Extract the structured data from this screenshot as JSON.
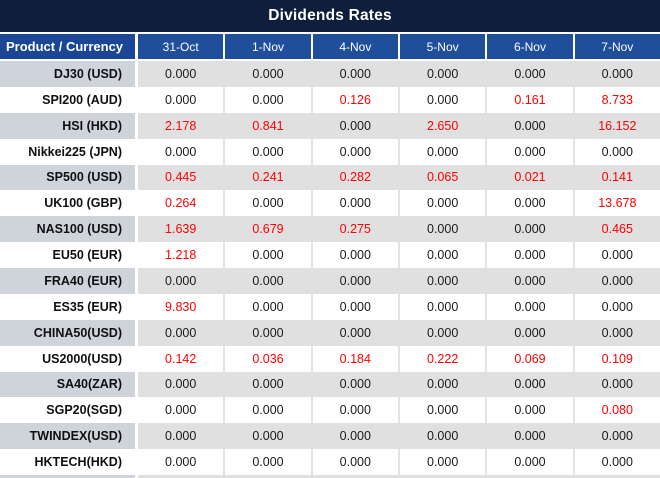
{
  "colors": {
    "title_bg": "#0E1E3C",
    "header_product_bg": "#1B4695",
    "header_date_bg": "#1F4E9B",
    "header_text": "#FFFFFF",
    "stripe_product_bg": "#CFD3DA",
    "stripe_data_bg": "#E0E0E0",
    "value_text": "#1A1A1A",
    "nonzero_value_text": "#FF0000"
  },
  "chart_data": {
    "type": "table",
    "title": "Dividends Rates",
    "header": {
      "product_label": "Product / Currency",
      "dates": [
        "31-Oct",
        "1-Nov",
        "4-Nov",
        "5-Nov",
        "6-Nov",
        "7-Nov"
      ]
    },
    "rows": [
      {
        "product": "DJ30 (USD)",
        "values": [
          "0.000",
          "0.000",
          "0.000",
          "0.000",
          "0.000",
          "0.000"
        ],
        "red": [
          false,
          false,
          false,
          false,
          false,
          false
        ]
      },
      {
        "product": "SPI200 (AUD)",
        "values": [
          "0.000",
          "0.000",
          "0.126",
          "0.000",
          "0.161",
          "8.733"
        ],
        "red": [
          false,
          false,
          true,
          false,
          true,
          true
        ]
      },
      {
        "product": "HSI (HKD)",
        "values": [
          "2.178",
          "0.841",
          "0.000",
          "2.650",
          "0.000",
          "16.152"
        ],
        "red": [
          true,
          true,
          false,
          true,
          false,
          true
        ]
      },
      {
        "product": "Nikkei225 (JPN)",
        "values": [
          "0.000",
          "0.000",
          "0.000",
          "0.000",
          "0.000",
          "0.000"
        ],
        "red": [
          false,
          false,
          false,
          false,
          false,
          false
        ]
      },
      {
        "product": "SP500 (USD)",
        "values": [
          "0.445",
          "0.241",
          "0.282",
          "0.065",
          "0.021",
          "0.141"
        ],
        "red": [
          true,
          true,
          true,
          true,
          true,
          true
        ]
      },
      {
        "product": "UK100 (GBP)",
        "values": [
          "0.264",
          "0.000",
          "0.000",
          "0.000",
          "0.000",
          "13.678"
        ],
        "red": [
          true,
          false,
          false,
          false,
          false,
          true
        ]
      },
      {
        "product": "NAS100 (USD)",
        "values": [
          "1.639",
          "0.679",
          "0.275",
          "0.000",
          "0.000",
          "0.465"
        ],
        "red": [
          true,
          true,
          true,
          false,
          false,
          true
        ]
      },
      {
        "product": "EU50 (EUR)",
        "values": [
          "1.218",
          "0.000",
          "0.000",
          "0.000",
          "0.000",
          "0.000"
        ],
        "red": [
          true,
          false,
          false,
          false,
          false,
          false
        ]
      },
      {
        "product": "FRA40 (EUR)",
        "values": [
          "0.000",
          "0.000",
          "0.000",
          "0.000",
          "0.000",
          "0.000"
        ],
        "red": [
          false,
          false,
          false,
          false,
          false,
          false
        ]
      },
      {
        "product": "ES35 (EUR)",
        "values": [
          "9.830",
          "0.000",
          "0.000",
          "0.000",
          "0.000",
          "0.000"
        ],
        "red": [
          true,
          false,
          false,
          false,
          false,
          false
        ]
      },
      {
        "product": "CHINA50(USD)",
        "values": [
          "0.000",
          "0.000",
          "0.000",
          "0.000",
          "0.000",
          "0.000"
        ],
        "red": [
          false,
          false,
          false,
          false,
          false,
          false
        ]
      },
      {
        "product": "US2000(USD)",
        "values": [
          "0.142",
          "0.036",
          "0.184",
          "0.222",
          "0.069",
          "0.109"
        ],
        "red": [
          true,
          true,
          true,
          true,
          true,
          true
        ]
      },
      {
        "product": "SA40(ZAR)",
        "values": [
          "0.000",
          "0.000",
          "0.000",
          "0.000",
          "0.000",
          "0.000"
        ],
        "red": [
          false,
          false,
          false,
          false,
          false,
          false
        ]
      },
      {
        "product": "SGP20(SGD)",
        "values": [
          "0.000",
          "0.000",
          "0.000",
          "0.000",
          "0.000",
          "0.080"
        ],
        "red": [
          false,
          false,
          false,
          false,
          false,
          true
        ]
      },
      {
        "product": "TWINDEX(USD)",
        "values": [
          "0.000",
          "0.000",
          "0.000",
          "0.000",
          "0.000",
          "0.000"
        ],
        "red": [
          false,
          false,
          false,
          false,
          false,
          false
        ]
      },
      {
        "product": "HKTECH(HKD)",
        "values": [
          "0.000",
          "0.000",
          "0.000",
          "0.000",
          "0.000",
          "0.000"
        ],
        "red": [
          false,
          false,
          false,
          false,
          false,
          false
        ]
      }
    ]
  }
}
